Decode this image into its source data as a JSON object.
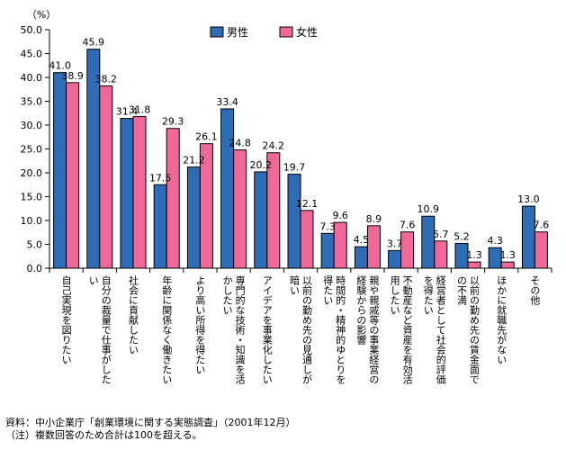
{
  "chart_data": {
    "type": "bar",
    "ylabel": "（%）",
    "ylim": [
      0,
      50
    ],
    "yticks": [
      "0.0",
      "5.0",
      "10.0",
      "15.0",
      "20.0",
      "25.0",
      "30.0",
      "35.0",
      "40.0",
      "45.0",
      "50.0"
    ],
    "grid": false,
    "legend_position": "top",
    "categories": [
      "自己実現を図りたい",
      "自分の裁量で仕事がしたい",
      "社会に貢献したい",
      "年齢に関係なく働きたい",
      "より高い所得を得たい",
      "専門的な技術・知識を活かしたい",
      "アイデアを事業化したい",
      "以前の勤め先の見通しが暗い",
      "時間的・精神的ゆとりを得たい",
      "親や親戚等の事業経営の経験からの影響",
      "不動産など資産を有効活用したい",
      "経営者として社会的評価を得たい",
      "以前の勤め先の賃金面での不満",
      "ほかに就職先がない",
      "その他"
    ],
    "series": [
      {
        "name": "男性",
        "color": "#2e6cb5",
        "values": [
          41.0,
          45.9,
          31.4,
          17.5,
          21.2,
          33.4,
          20.2,
          19.7,
          7.3,
          4.5,
          3.7,
          10.9,
          5.2,
          4.3,
          13.0
        ],
        "labels": [
          "41.0",
          "45.9",
          "31.4",
          "17.5",
          "21.2",
          "33.4",
          "20.2",
          "19.7",
          "7.3",
          "4.5",
          "3.7",
          "10.9",
          "5.2",
          "4.3",
          "13.0"
        ]
      },
      {
        "name": "女性",
        "color": "#f0689a",
        "values": [
          38.9,
          38.2,
          31.8,
          29.3,
          26.1,
          24.8,
          24.2,
          12.1,
          9.6,
          8.9,
          7.6,
          5.7,
          1.3,
          1.3,
          7.6
        ],
        "labels": [
          "38.9",
          "38.2",
          "31.8",
          "29.3",
          "26.1",
          "24.8",
          "24.2",
          "12.1",
          "9.6",
          "8.9",
          "7.6",
          "5.7",
          "1.3",
          "1.3",
          "7.6"
        ]
      }
    ]
  },
  "notes": {
    "source": "資料：中小企業庁「創業環境に関する実態調査」（2001年12月）",
    "remark": "（注）複数回答のため合計は100を超える。"
  }
}
